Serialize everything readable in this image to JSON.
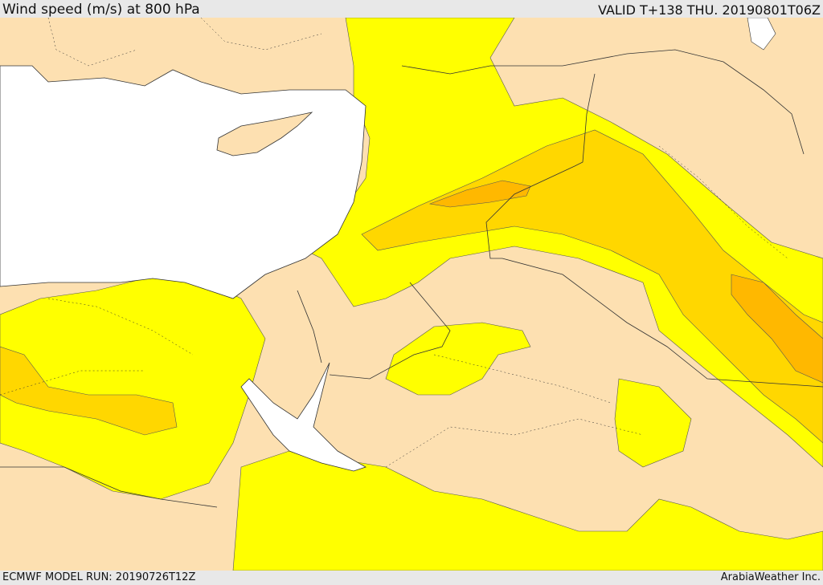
{
  "header": {
    "title": "Wind speed (m/s) at 800 hPa",
    "valid": "VALID T+138 THU. 20190801T06Z"
  },
  "footer": {
    "model_run": "ECMWF MODEL RUN: 20190726T12Z",
    "credit": "ArabiaWeather Inc."
  },
  "map": {
    "colors": {
      "land_low": "#fde0b1",
      "band_yellow": "#ffff00",
      "band_gold": "#ffd700",
      "band_orange": "#ffb800",
      "band_dark": "#ffa500",
      "water": "#ffffff"
    }
  }
}
